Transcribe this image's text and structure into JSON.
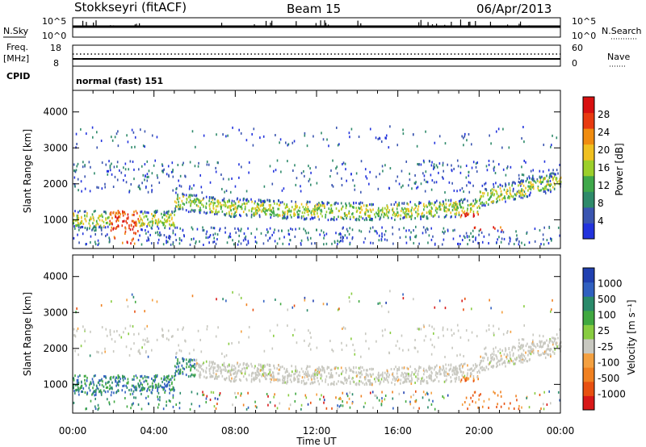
{
  "header": {
    "station": "Stokkseyri (fitACF)",
    "beam": "Beam 15",
    "date": "06/Apr/2013"
  },
  "labels": {
    "nsky": "N.Sky",
    "freq": "Freq.",
    "mhz": "[MHz]",
    "cpid": "CPID",
    "nsearch": "N.Search",
    "nave": "Nave",
    "cpid_value": "normal (fast) 151"
  },
  "noise_panel": {
    "left_ticks": [
      "10^5",
      "10^0"
    ],
    "right_ticks": [
      "10^5",
      "10^0"
    ]
  },
  "freq_panel": {
    "left_ticks": [
      "18",
      "8"
    ],
    "right_ticks": [
      "60",
      "0"
    ]
  },
  "colors": {
    "power": [
      "#2233dd",
      "#3a55b0",
      "#2e8a6a",
      "#3fa84a",
      "#9ccf2a",
      "#f0c020",
      "#f08c10",
      "#e83a10",
      "#d81010"
    ],
    "velocity": [
      "#2040b0",
      "#3060c0",
      "#2a8a6a",
      "#40a840",
      "#88cc40",
      "#c8c8c0",
      "#f4a040",
      "#f08020",
      "#e85010",
      "#d81818"
    ]
  },
  "chart_data": [
    {
      "type": "heatmap",
      "ylabel": "Slant Range [km]",
      "xlabel": "",
      "x_ticks": [
        "00:00",
        "04:00",
        "08:00",
        "12:00",
        "16:00",
        "20:00",
        "00:00"
      ],
      "y_ticks": [
        1000,
        2000,
        3000,
        4000
      ],
      "ylim": [
        200,
        4600
      ],
      "colorbar": {
        "label": "Power [dB]",
        "ticks": [
          4,
          8,
          12,
          16,
          20,
          24,
          28
        ]
      }
    },
    {
      "type": "heatmap",
      "ylabel": "Slant Range [km]",
      "xlabel": "Time UT",
      "x_ticks": [
        "00:00",
        "04:00",
        "08:00",
        "12:00",
        "16:00",
        "20:00",
        "00:00"
      ],
      "y_ticks": [
        1000,
        2000,
        3000,
        4000
      ],
      "ylim": [
        200,
        4600
      ],
      "colorbar": {
        "label": "Velocity [m s⁻¹]",
        "ticks": [
          1000,
          500,
          100,
          25,
          -25,
          -100,
          -500,
          -1000
        ]
      }
    }
  ]
}
